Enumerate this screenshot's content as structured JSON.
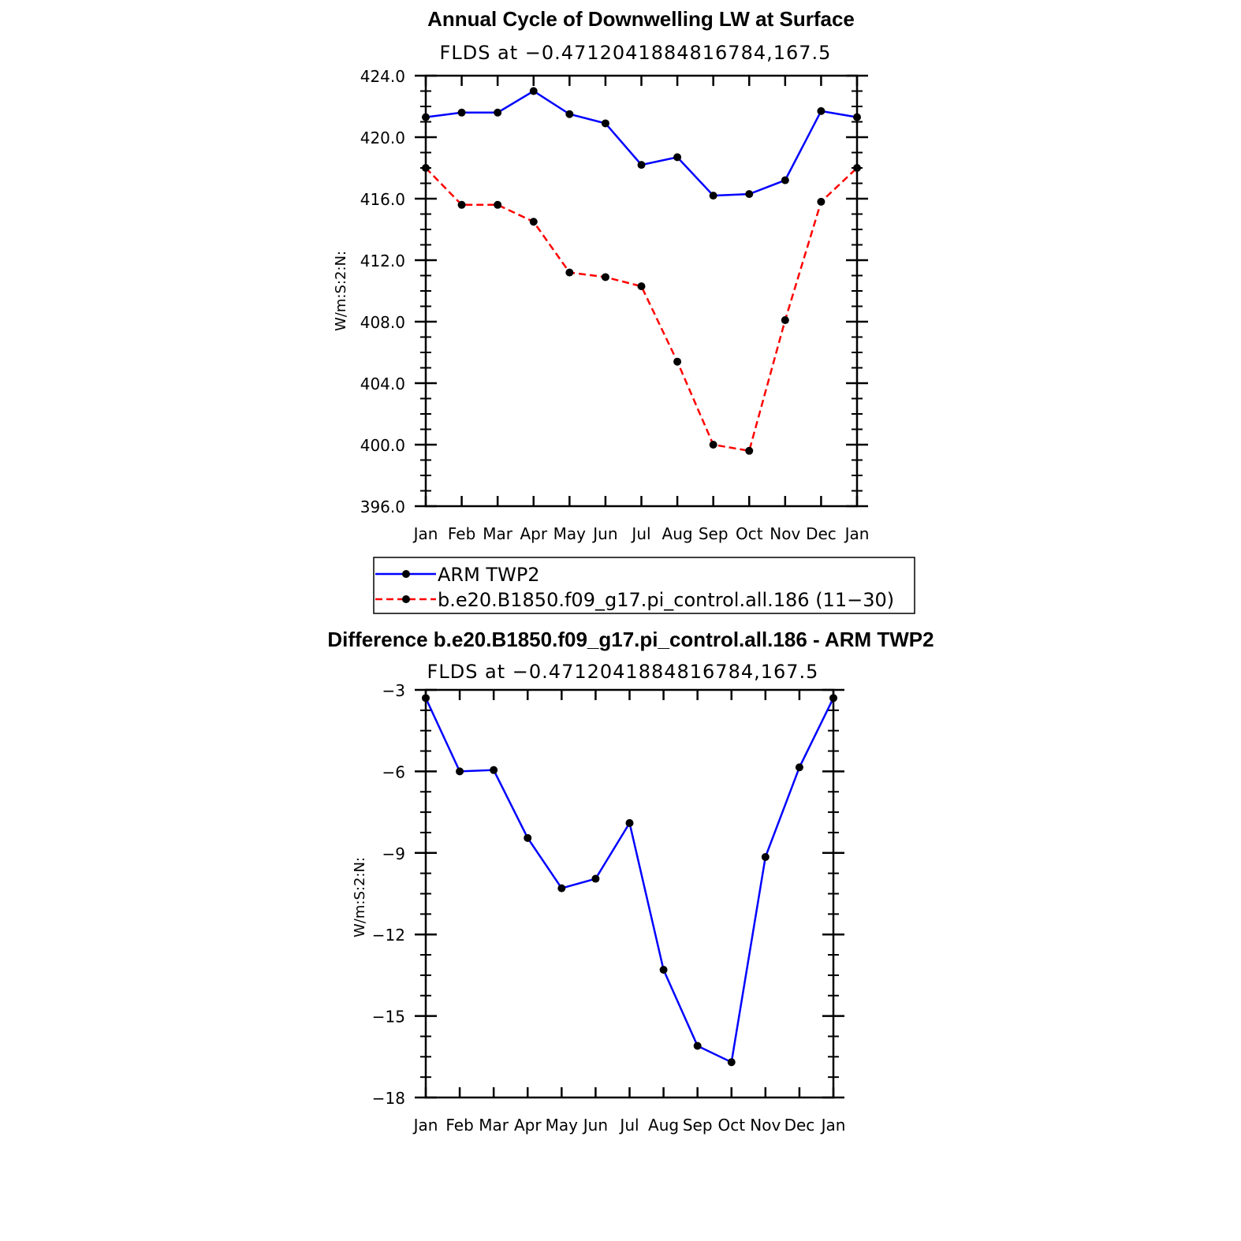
{
  "chart_data": [
    {
      "type": "line",
      "title": "Annual Cycle of Downwelling LW at Surface",
      "subtitle": "FLDS at −0.4712041884816784,167.5",
      "ylabel": "W/m:S:2:N:",
      "categories": [
        "Jan",
        "Feb",
        "Mar",
        "Apr",
        "May",
        "Jun",
        "Jul",
        "Aug",
        "Sep",
        "Oct",
        "Nov",
        "Dec",
        "Jan"
      ],
      "ylim": [
        396,
        424
      ],
      "yticks": [
        396,
        400,
        404,
        408,
        412,
        416,
        420,
        424
      ],
      "ytick_labels": [
        "396.0",
        "400.0",
        "404.0",
        "408.0",
        "412.0",
        "416.0",
        "420.0",
        "424.0"
      ],
      "series": [
        {
          "name": "ARM TWP2",
          "color": "#0000ff",
          "dash": "solid",
          "values": [
            421.3,
            421.6,
            421.6,
            423.0,
            421.5,
            420.9,
            418.2,
            418.7,
            416.2,
            416.3,
            417.2,
            421.7,
            421.3
          ]
        },
        {
          "name": "b.e20.B1850.f09_g17.pi_control.all.186 (11−30)",
          "color": "#ff0000",
          "dash": "dashed",
          "values": [
            418.0,
            415.6,
            415.6,
            414.5,
            411.2,
            410.9,
            410.3,
            405.4,
            400.0,
            399.6,
            408.1,
            415.8,
            418.0
          ]
        }
      ],
      "legend_position": "bottom"
    },
    {
      "type": "line",
      "title": "Difference b.e20.B1850.f09_g17.pi_control.all.186 - ARM TWP2",
      "subtitle": "FLDS at −0.4712041884816784,167.5",
      "ylabel": "W/m:S:2:N:",
      "categories": [
        "Jan",
        "Feb",
        "Mar",
        "Apr",
        "May",
        "Jun",
        "Jul",
        "Aug",
        "Sep",
        "Oct",
        "Nov",
        "Dec",
        "Jan"
      ],
      "ylim": [
        -18,
        -3
      ],
      "yticks": [
        -18,
        -15,
        -12,
        -9,
        -6,
        -3
      ],
      "ytick_labels": [
        "−18",
        "−15",
        "−12",
        "−9",
        "−6",
        "−3"
      ],
      "series": [
        {
          "color": "#0000ff",
          "dash": "solid",
          "values": [
            -3.3,
            -6.0,
            -5.95,
            -8.45,
            -10.3,
            -9.95,
            -7.9,
            -13.3,
            -16.1,
            -16.7,
            -9.15,
            -5.85,
            -3.3
          ]
        }
      ]
    }
  ]
}
